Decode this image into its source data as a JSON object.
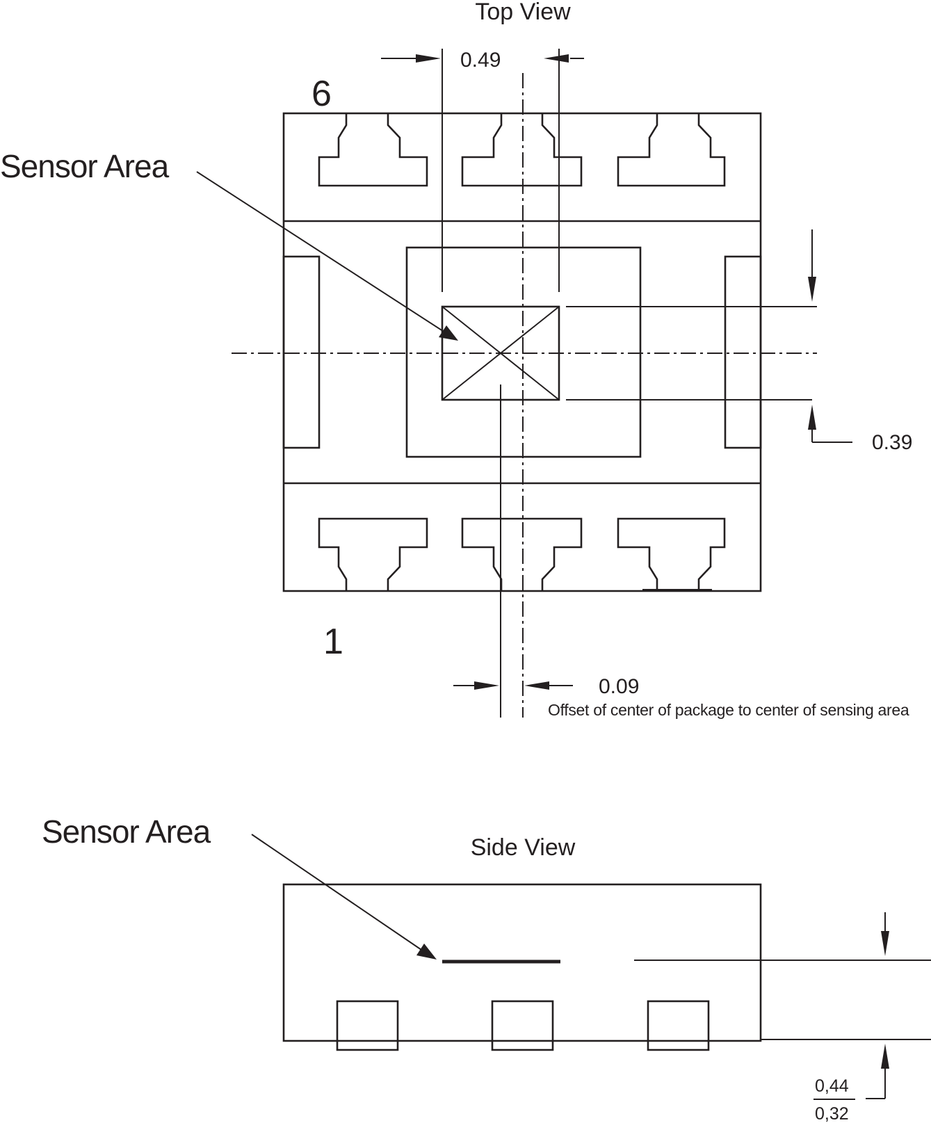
{
  "top_view": {
    "title": "Top View",
    "pin_6_label": "6",
    "pin_1_label": "1",
    "sensor_label": "Sensor Area",
    "dim_width": "0.49",
    "dim_height": "0.39",
    "dim_offset": "0.09",
    "offset_note": "Offset of center of package to center of sensing area"
  },
  "side_view": {
    "title": "Side View",
    "sensor_label": "Sensor Area",
    "dim_upper": "0,44",
    "dim_lower": "0,32"
  }
}
